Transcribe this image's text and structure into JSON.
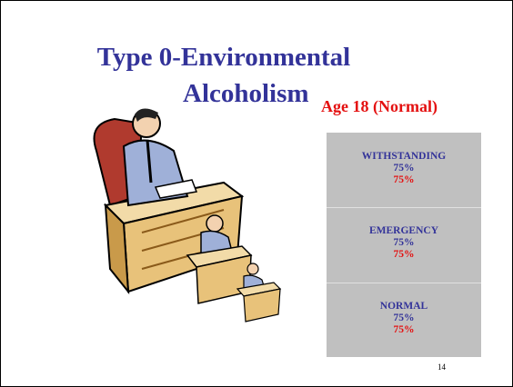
{
  "slide": {
    "title": [
      "Type 0-Environmental",
      "Alcoholism"
    ],
    "subtitle": "Age 18 (Normal)",
    "boxes": [
      {
        "label": "WITHSTANDING",
        "values": [
          "75%",
          "75%"
        ]
      },
      {
        "label": "EMERGENCY",
        "values": [
          "75%",
          "75%"
        ]
      },
      {
        "label": "NORMAL",
        "values": [
          "75%",
          "75%"
        ]
      }
    ],
    "page_number": "14"
  }
}
